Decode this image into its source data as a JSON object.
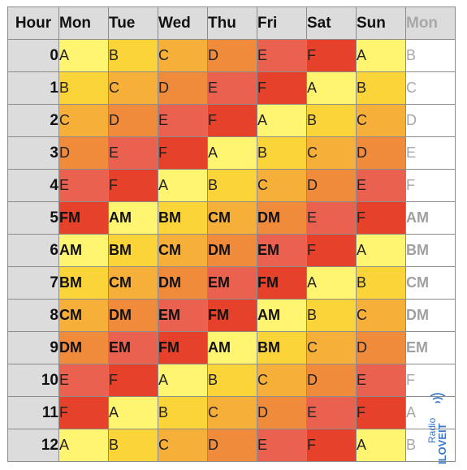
{
  "header": {
    "hour_label": "Hour",
    "days": [
      "Mon",
      "Tue",
      "Wed",
      "Thu",
      "Fri",
      "Sat",
      "Sun",
      "Mon"
    ]
  },
  "rows": [
    {
      "hour": "0",
      "cells": [
        "A",
        "B",
        "C",
        "D",
        "E",
        "F",
        "A",
        "B"
      ]
    },
    {
      "hour": "1",
      "cells": [
        "B",
        "C",
        "D",
        "E",
        "F",
        "A",
        "B",
        "C"
      ]
    },
    {
      "hour": "2",
      "cells": [
        "C",
        "D",
        "E",
        "F",
        "A",
        "B",
        "C",
        "D"
      ]
    },
    {
      "hour": "3",
      "cells": [
        "D",
        "E",
        "F",
        "A",
        "B",
        "C",
        "D",
        "E"
      ]
    },
    {
      "hour": "4",
      "cells": [
        "E",
        "F",
        "A",
        "B",
        "C",
        "D",
        "E",
        "F"
      ]
    },
    {
      "hour": "5",
      "cells": [
        "FM",
        "AM",
        "BM",
        "CM",
        "DM",
        "E",
        "F",
        "AM"
      ]
    },
    {
      "hour": "6",
      "cells": [
        "AM",
        "BM",
        "CM",
        "DM",
        "EM",
        "F",
        "A",
        "BM"
      ]
    },
    {
      "hour": "7",
      "cells": [
        "BM",
        "CM",
        "DM",
        "EM",
        "FM",
        "A",
        "B",
        "CM"
      ]
    },
    {
      "hour": "8",
      "cells": [
        "CM",
        "DM",
        "EM",
        "FM",
        "AM",
        "B",
        "C",
        "DM"
      ]
    },
    {
      "hour": "9",
      "cells": [
        "DM",
        "EM",
        "FM",
        "AM",
        "BM",
        "C",
        "D",
        "EM"
      ]
    },
    {
      "hour": "10",
      "cells": [
        "E",
        "F",
        "A",
        "B",
        "C",
        "D",
        "E",
        "F"
      ]
    },
    {
      "hour": "11",
      "cells": [
        "F",
        "A",
        "B",
        "C",
        "D",
        "E",
        "F",
        "A"
      ]
    },
    {
      "hour": "12",
      "cells": [
        "A",
        "B",
        "C",
        "D",
        "E",
        "F",
        "A",
        "B"
      ]
    }
  ],
  "colors": {
    "A": "#fff570",
    "B": "#fbd43a",
    "C": "#f6b03a",
    "D": "#f08b3c",
    "E": "#ea6150",
    "F": "#e6422b",
    "header_bg": "#dcdcdc",
    "grid_line": "#8c8c8c",
    "next_day_text": "#a8a8a8"
  },
  "watermark": {
    "line1": "Radio",
    "line2": "ILOVEIT",
    "icon": "broadcast-waves-icon",
    "color": "#3b78c9"
  }
}
